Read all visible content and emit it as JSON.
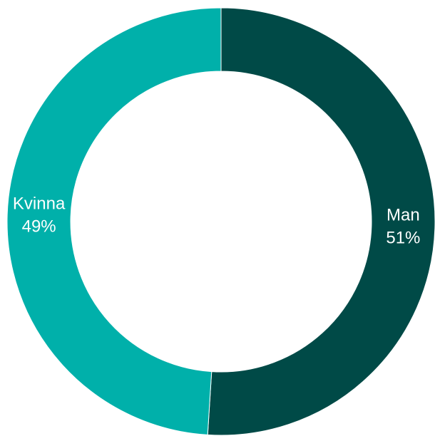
{
  "chart_data": {
    "type": "donut",
    "categories": [
      "Man",
      "Kvinna"
    ],
    "values": [
      51,
      49
    ],
    "value_labels": [
      "51%",
      "49%"
    ],
    "colors": [
      "#004a47",
      "#00b0aa"
    ]
  }
}
